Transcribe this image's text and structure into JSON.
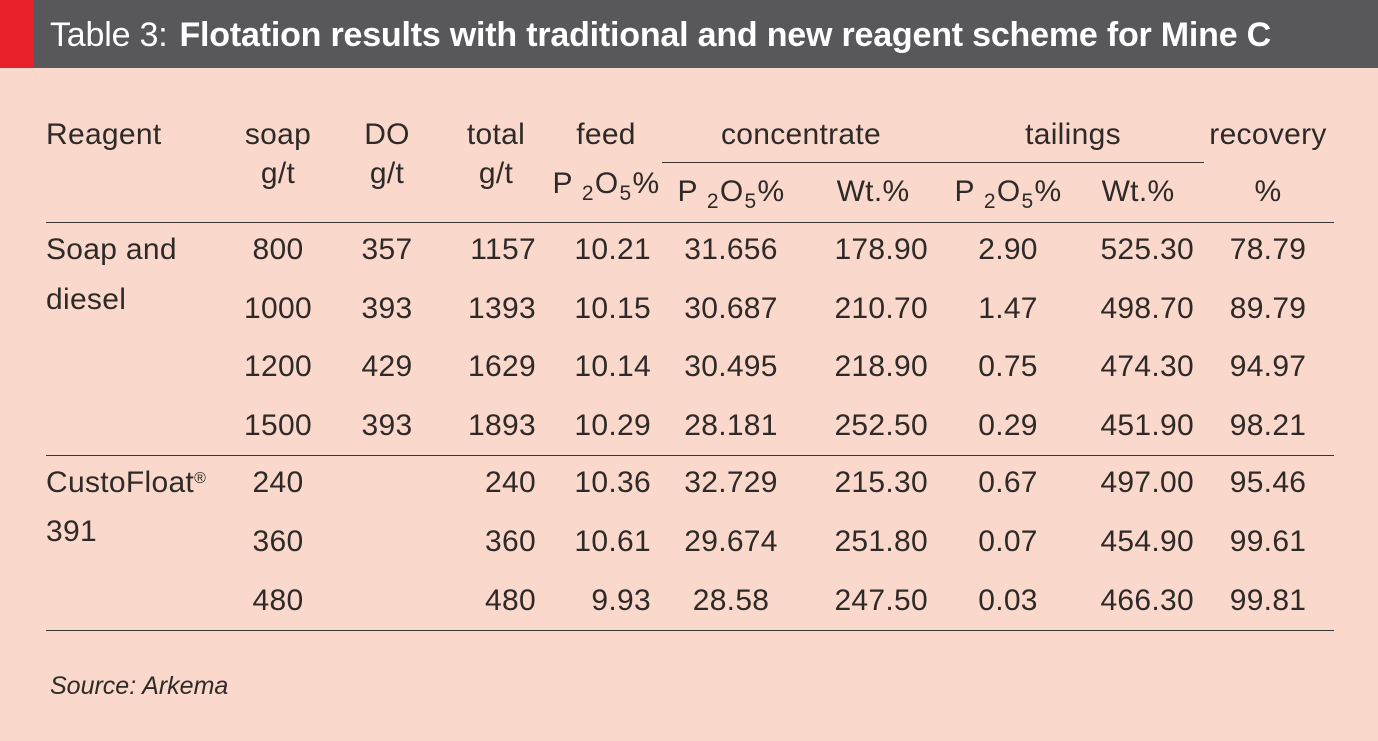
{
  "header": {
    "label": "Table 3:",
    "caption": "Flotation results with traditional and new reagent scheme for Mine C",
    "accent_color": "#e8202a",
    "bar_color": "#58585a"
  },
  "table": {
    "headers": {
      "reagent": "Reagent",
      "soap_top": "soap",
      "soap_bottom": "g/t",
      "do_top": "DO",
      "do_bottom": "g/t",
      "total_top": "total",
      "total_bottom": "g/t",
      "feed_top": "feed",
      "feed_p": "P",
      "feed_sub": "2",
      "feed_o": "O",
      "feed_sub2": "5",
      "feed_pct": "%",
      "concentrate": "concentrate",
      "conc_p": "P",
      "conc_sub": "2",
      "conc_o": "O",
      "conc_sub2": "5",
      "conc_pct": "%",
      "conc_wt": "Wt.%",
      "tailings": "tailings",
      "tail_p": "P",
      "tail_sub": "2",
      "tail_o": "O",
      "tail_sub2": "5",
      "tail_pct": "%",
      "tail_wt": "Wt.%",
      "recovery_top": "recovery",
      "recovery_bottom": "%"
    },
    "groups": [
      {
        "reagent_line1": "Soap and",
        "reagent_line2": "diesel",
        "reagent_sup": ""
      },
      {
        "reagent_line1": "CustoFloat",
        "reagent_sup": "®",
        "reagent_line2": "391"
      }
    ],
    "rows": [
      {
        "soap": "800",
        "do": "357",
        "total": "1157",
        "feed": "10.21",
        "conc_p": "31.656",
        "conc_wt": "178.90",
        "tail_p": "2.90",
        "tail_wt": "525.30",
        "recovery": "78.79"
      },
      {
        "soap": "1000",
        "do": "393",
        "total": "1393",
        "feed": "10.15",
        "conc_p": "30.687",
        "conc_wt": "210.70",
        "tail_p": "1.47",
        "tail_wt": "498.70",
        "recovery": "89.79"
      },
      {
        "soap": "1200",
        "do": "429",
        "total": "1629",
        "feed": "10.14",
        "conc_p": "30.495",
        "conc_wt": "218.90",
        "tail_p": "0.75",
        "tail_wt": "474.30",
        "recovery": "94.97"
      },
      {
        "soap": "1500",
        "do": "393",
        "total": "1893",
        "feed": "10.29",
        "conc_p": "28.181",
        "conc_wt": "252.50",
        "tail_p": "0.29",
        "tail_wt": "451.90",
        "recovery": "98.21"
      },
      {
        "soap": "240",
        "do": "",
        "total": "240",
        "feed": "10.36",
        "conc_p": "32.729",
        "conc_wt": "215.30",
        "tail_p": "0.67",
        "tail_wt": "497.00",
        "recovery": "95.46"
      },
      {
        "soap": "360",
        "do": "",
        "total": "360",
        "feed": "10.61",
        "conc_p": "29.674",
        "conc_wt": "251.80",
        "tail_p": "0.07",
        "tail_wt": "454.90",
        "recovery": "99.61"
      },
      {
        "soap": "480",
        "do": "",
        "total": "480",
        "feed": "9.93",
        "conc_p": "28.58",
        "conc_wt": "247.50",
        "tail_p": "0.03",
        "tail_wt": "466.30",
        "recovery": "99.81"
      }
    ]
  },
  "source": "Source: Arkema"
}
